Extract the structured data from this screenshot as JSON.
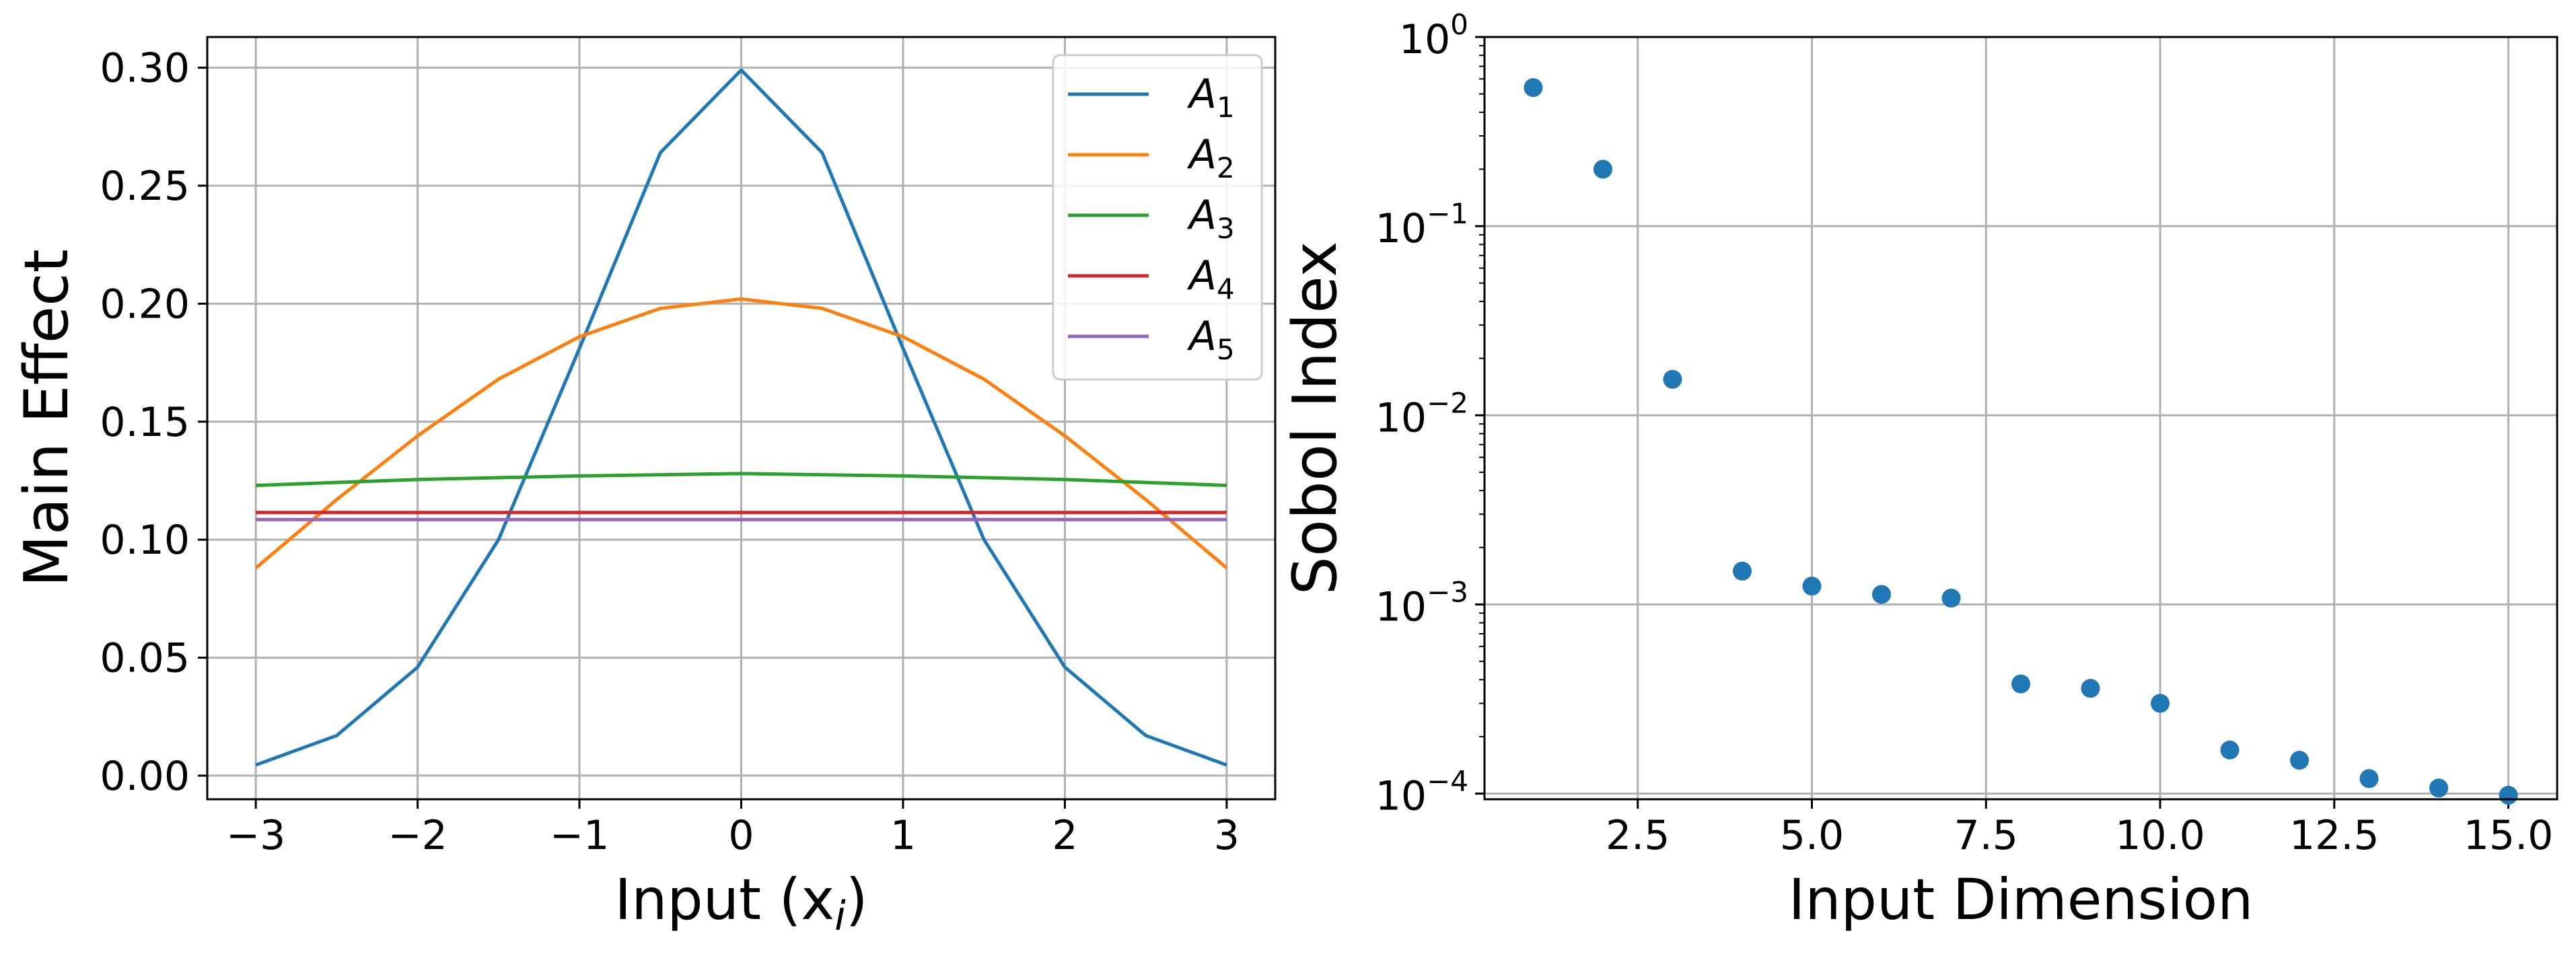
{
  "chart_data": [
    {
      "type": "line",
      "xlabel": "Input (x",
      "xlabel_sub": "i",
      "xlabel_close": ")",
      "ylabel": "Main Effect",
      "xlim": [
        -3.3,
        3.3
      ],
      "ylim": [
        -0.01,
        0.313
      ],
      "xticks": [
        -3,
        -2,
        -1,
        0,
        1,
        2,
        3
      ],
      "xtick_labels": [
        "−3",
        "−2",
        "−1",
        "0",
        "1",
        "2",
        "3"
      ],
      "yticks": [
        0.0,
        0.05,
        0.1,
        0.15,
        0.2,
        0.25,
        0.3
      ],
      "ytick_labels": [
        "0.00",
        "0.05",
        "0.10",
        "0.15",
        "0.20",
        "0.25",
        "0.30"
      ],
      "grid": true,
      "legend_position": "top-right",
      "series": [
        {
          "name": "A",
          "sub": "1",
          "color": "#1f77b4",
          "x": [
            -3,
            -2.5,
            -2,
            -1.5,
            -1,
            -0.5,
            0,
            0.5,
            1,
            1.5,
            2,
            2.5,
            3
          ],
          "y": [
            0.0045,
            0.017,
            0.046,
            0.1,
            0.181,
            0.264,
            0.299,
            0.264,
            0.181,
            0.1,
            0.046,
            0.017,
            0.0045
          ]
        },
        {
          "name": "A",
          "sub": "2",
          "color": "#ff7f0e",
          "x": [
            -3,
            -2.5,
            -2,
            -1.5,
            -1,
            -0.5,
            0,
            0.5,
            1,
            1.5,
            2,
            2.5,
            3
          ],
          "y": [
            0.088,
            0.117,
            0.144,
            0.168,
            0.186,
            0.198,
            0.202,
            0.198,
            0.186,
            0.168,
            0.144,
            0.117,
            0.088
          ]
        },
        {
          "name": "A",
          "sub": "3",
          "color": "#2ca02c",
          "x": [
            -3,
            -2,
            -1,
            0,
            1,
            2,
            3
          ],
          "y": [
            0.123,
            0.1255,
            0.127,
            0.128,
            0.127,
            0.1255,
            0.123
          ]
        },
        {
          "name": "A",
          "sub": "4",
          "color": "#d62728",
          "x": [
            -3,
            0,
            3
          ],
          "y": [
            0.1115,
            0.1115,
            0.1115
          ]
        },
        {
          "name": "A",
          "sub": "5",
          "color": "#9467bd",
          "x": [
            -3,
            0,
            3
          ],
          "y": [
            0.1085,
            0.1085,
            0.1085
          ]
        }
      ]
    },
    {
      "type": "scatter",
      "xlabel": "Input Dimension",
      "ylabel": "Sobol Index",
      "xlim": [
        0.3,
        15.7
      ],
      "ylim_log10": [
        -4.03,
        0
      ],
      "yscale": "log",
      "xticks": [
        2.5,
        5.0,
        7.5,
        10.0,
        12.5,
        15.0
      ],
      "xtick_labels": [
        "2.5",
        "5.0",
        "7.5",
        "10.0",
        "12.5",
        "15.0"
      ],
      "yticks_exp": [
        -4,
        -3,
        -2,
        -1,
        0
      ],
      "ytick_labels": [
        "10",
        "10",
        "10",
        "10",
        "10"
      ],
      "ytick_exps": [
        "−4",
        "−3",
        "−2",
        "−1",
        "0"
      ],
      "grid": true,
      "marker_color": "#1f77b4",
      "x": [
        1,
        2,
        3,
        4,
        5,
        6,
        7,
        8,
        9,
        10,
        11,
        12,
        13,
        14,
        15
      ],
      "y": [
        0.54,
        0.2,
        0.0155,
        0.0015,
        0.00125,
        0.00113,
        0.00108,
        0.00038,
        0.00036,
        0.0003,
        0.00017,
        0.00015,
        0.00012,
        0.000107,
        9.8e-05
      ]
    }
  ]
}
